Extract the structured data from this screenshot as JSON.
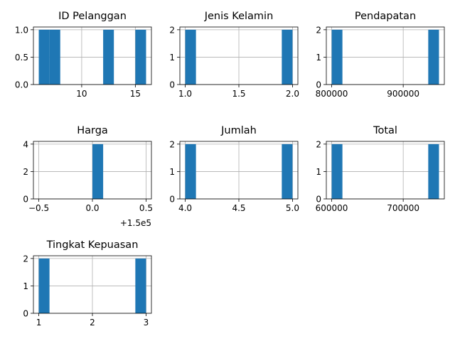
{
  "chart_data": [
    {
      "type": "bar",
      "title": "ID Pelanggan",
      "xlim": [
        5.5,
        16.5
      ],
      "ylim": [
        0,
        1.05
      ],
      "xticks": [
        "10",
        "15"
      ],
      "xtick_values": [
        10,
        15
      ],
      "yticks": [
        "0.0",
        "0.5",
        "1.0"
      ],
      "ytick_values": [
        0,
        0.5,
        1
      ],
      "bins": [
        [
          6,
          7,
          1
        ],
        [
          7,
          8,
          1
        ],
        [
          12,
          13,
          1
        ],
        [
          15,
          16,
          1
        ]
      ],
      "offset_label": "",
      "grid": true
    },
    {
      "type": "bar",
      "title": "Jenis Kelamin",
      "xlim": [
        0.95,
        2.05
      ],
      "ylim": [
        0,
        2.1
      ],
      "xticks": [
        "1.0",
        "1.5",
        "2.0"
      ],
      "xtick_values": [
        1,
        1.5,
        2
      ],
      "yticks": [
        "0",
        "1",
        "2"
      ],
      "ytick_values": [
        0,
        1,
        2
      ],
      "bins": [
        [
          1.0,
          1.1,
          2
        ],
        [
          1.9,
          2.0,
          2
        ]
      ],
      "offset_label": "",
      "grid": true
    },
    {
      "type": "bar",
      "title": "Pendapatan",
      "xlim": [
        792500,
        957500
      ],
      "ylim": [
        0,
        2.1
      ],
      "xticks": [
        "800000",
        "900000"
      ],
      "xtick_values": [
        800000,
        900000
      ],
      "yticks": [
        "0",
        "1",
        "2"
      ],
      "ytick_values": [
        0,
        1,
        2
      ],
      "bins": [
        [
          800000,
          815000,
          2
        ],
        [
          935000,
          950000,
          2
        ]
      ],
      "offset_label": "",
      "grid": true
    },
    {
      "type": "bar",
      "title": "Harga",
      "xlim": [
        -0.55,
        0.55
      ],
      "ylim": [
        0,
        4.2
      ],
      "xticks": [
        "−0.5",
        "0.0",
        "0.5"
      ],
      "xtick_values": [
        -0.5,
        0,
        0.5
      ],
      "yticks": [
        "0",
        "2",
        "4"
      ],
      "ytick_values": [
        0,
        2,
        4
      ],
      "bins": [
        [
          0.0,
          0.1,
          4
        ]
      ],
      "offset_label": "+1.5e5",
      "grid": true
    },
    {
      "type": "bar",
      "title": "Jumlah",
      "xlim": [
        3.95,
        5.05
      ],
      "ylim": [
        0,
        2.1
      ],
      "xticks": [
        "4.0",
        "4.5",
        "5.0"
      ],
      "xtick_values": [
        4,
        4.5,
        5
      ],
      "yticks": [
        "0",
        "1",
        "2"
      ],
      "ytick_values": [
        0,
        1,
        2
      ],
      "bins": [
        [
          4.0,
          4.1,
          2
        ],
        [
          4.9,
          5.0,
          2
        ]
      ],
      "offset_label": "",
      "grid": true
    },
    {
      "type": "bar",
      "title": "Total",
      "xlim": [
        592500,
        757500
      ],
      "ylim": [
        0,
        2.1
      ],
      "xticks": [
        "600000",
        "700000"
      ],
      "xtick_values": [
        600000,
        700000
      ],
      "yticks": [
        "0",
        "1",
        "2"
      ],
      "ytick_values": [
        0,
        1,
        2
      ],
      "bins": [
        [
          600000,
          615000,
          2
        ],
        [
          735000,
          750000,
          2
        ]
      ],
      "offset_label": "",
      "grid": true
    },
    {
      "type": "bar",
      "title": "Tingkat Kepuasan",
      "xlim": [
        0.9,
        3.1
      ],
      "ylim": [
        0,
        2.1
      ],
      "xticks": [
        "1",
        "2",
        "3"
      ],
      "xtick_values": [
        1,
        2,
        3
      ],
      "yticks": [
        "0",
        "1",
        "2"
      ],
      "ytick_values": [
        0,
        1,
        2
      ],
      "bins": [
        [
          1.0,
          1.2,
          2
        ],
        [
          2.8,
          3.0,
          2
        ]
      ],
      "offset_label": "",
      "grid": true
    }
  ],
  "colors": {
    "bar": "#1f77b4",
    "grid": "#b0b0b0"
  }
}
